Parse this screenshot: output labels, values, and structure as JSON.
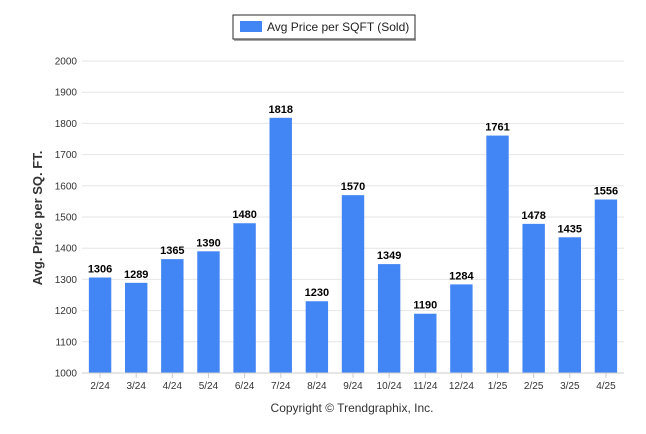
{
  "chart_data": {
    "type": "bar",
    "categories": [
      "2/24",
      "3/24",
      "4/24",
      "5/24",
      "6/24",
      "7/24",
      "8/24",
      "9/24",
      "10/24",
      "11/24",
      "12/24",
      "1/25",
      "2/25",
      "3/25",
      "4/25"
    ],
    "series": [
      {
        "name": "Avg Price per SQFT (Sold)",
        "values": [
          1306,
          1289,
          1365,
          1390,
          1480,
          1818,
          1230,
          1570,
          1349,
          1190,
          1284,
          1761,
          1478,
          1435,
          1556
        ],
        "color": "#4285f4"
      }
    ],
    "ylabel": "Avg. Price per SQ. FT.",
    "xlabel": "",
    "ylim": [
      1000,
      2000
    ],
    "yticks": [
      1000,
      1100,
      1200,
      1300,
      1400,
      1500,
      1600,
      1700,
      1800,
      1900,
      2000
    ],
    "grid": true,
    "legend": "top-center",
    "data_labels": true
  },
  "footer": {
    "credit": "Copyright © Trendgraphix, Inc."
  }
}
